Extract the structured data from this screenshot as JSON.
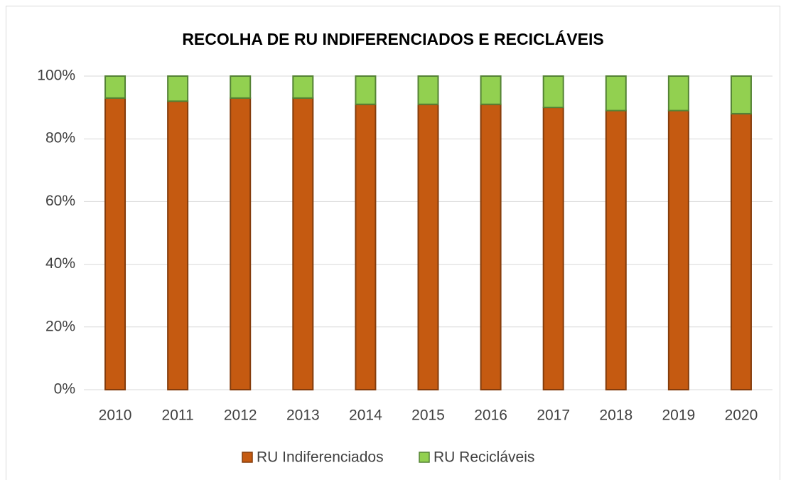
{
  "chart_data": {
    "type": "stacked_bar",
    "title": "RECOLHA DE RU INDIFERENCIADOS E RECICLÁVEIS",
    "categories": [
      "2010",
      "2011",
      "2012",
      "2013",
      "2014",
      "2015",
      "2016",
      "2017",
      "2018",
      "2019",
      "2020"
    ],
    "series": [
      {
        "name": "RU Indiferenciados",
        "color": "#c55a11",
        "values": [
          93,
          92,
          93,
          93,
          91,
          91,
          91,
          90,
          89,
          89,
          88
        ]
      },
      {
        "name": "RU Recicláveis",
        "color": "#92d050",
        "values": [
          7,
          8,
          7,
          7,
          9,
          9,
          9,
          10,
          11,
          11,
          12
        ]
      }
    ],
    "ylim": [
      0,
      100
    ],
    "yticks": [
      {
        "value": 0,
        "label": "0%"
      },
      {
        "value": 20,
        "label": "20%"
      },
      {
        "value": 40,
        "label": "40%"
      },
      {
        "value": 60,
        "label": "60%"
      },
      {
        "value": 80,
        "label": "80%"
      },
      {
        "value": 100,
        "label": "100%"
      }
    ],
    "grid": true,
    "legend": "bottom"
  }
}
